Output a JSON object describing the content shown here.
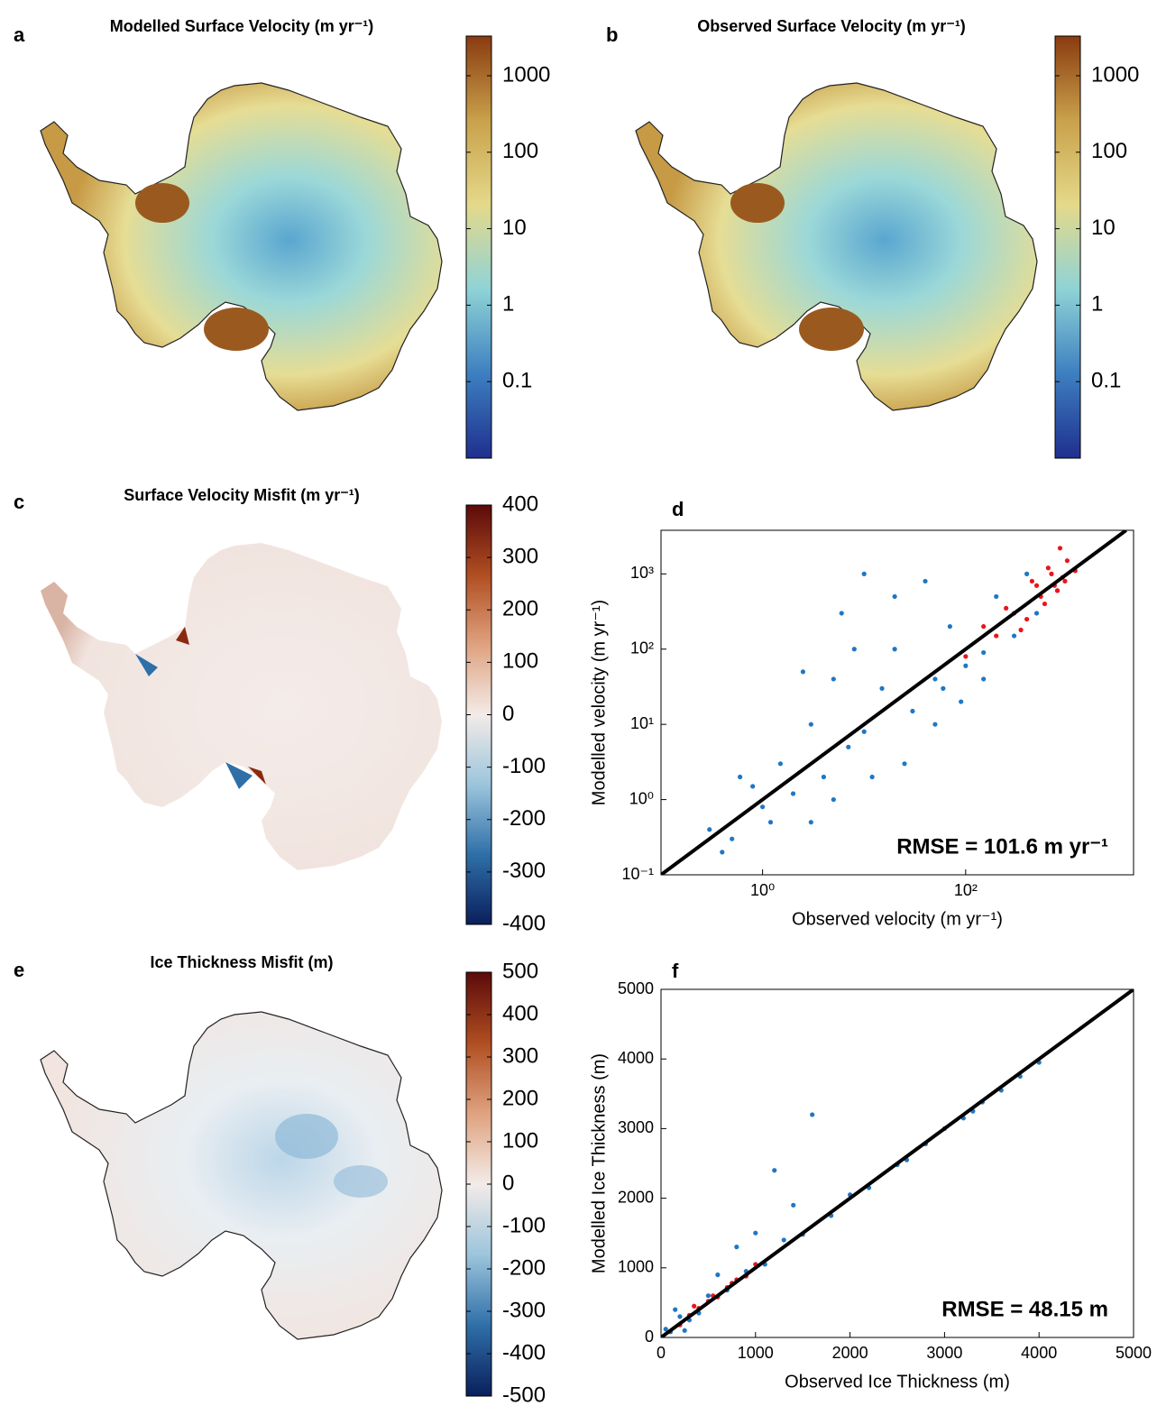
{
  "chart_data": [
    {
      "type": "map",
      "panel": "a",
      "title": "Modelled Surface Velocity (m yr⁻¹)",
      "log_scale": true,
      "clim": [
        0.01,
        3300
      ],
      "cticks": [
        0.1,
        1,
        10,
        100,
        1000
      ],
      "colormap": [
        "#1f2f8f",
        "#3d7fc0",
        "#8fd3d6",
        "#e4d98a",
        "#c9a14b",
        "#8a3b10"
      ]
    },
    {
      "type": "map",
      "panel": "b",
      "title": "Observed Surface Velocity (m yr⁻¹)",
      "log_scale": true,
      "clim": [
        0.01,
        3300
      ],
      "cticks": [
        0.1,
        1,
        10,
        100,
        1000
      ],
      "colormap": [
        "#1f2f8f",
        "#3d7fc0",
        "#8fd3d6",
        "#e4d98a",
        "#c9a14b",
        "#8a3b10"
      ]
    },
    {
      "type": "map",
      "panel": "c",
      "title": "Surface Velocity Misfit (m yr⁻¹)",
      "log_scale": false,
      "clim": [
        -400,
        400
      ],
      "cticks": [
        -400,
        -300,
        -200,
        -100,
        0,
        100,
        200,
        300,
        400
      ],
      "colormap": [
        "#0a1f5c",
        "#2f6fa8",
        "#9cc5dc",
        "#f3ebe8",
        "#dfa27f",
        "#b04e22",
        "#5c0a0a"
      ]
    },
    {
      "type": "scatter",
      "panel": "d",
      "log_scale": true,
      "xlabel": "Observed velocity (m yr⁻¹)",
      "ylabel": "Modelled velocity (m yr⁻¹)",
      "annotation": "RMSE = 101.6 m yr⁻¹",
      "xlim": [
        0.1,
        4500
      ],
      "ylim": [
        0.1,
        3800
      ],
      "xticks": [
        {
          "value": 1,
          "label": "10⁰"
        },
        {
          "value": 100,
          "label": "10²"
        }
      ],
      "yticks": [
        {
          "value": 0.1,
          "label": "10⁻¹"
        },
        {
          "value": 1,
          "label": "10⁰"
        },
        {
          "value": 10,
          "label": "10¹"
        },
        {
          "value": 100,
          "label": "10²"
        },
        {
          "value": 1000,
          "label": "10³"
        }
      ],
      "series": [
        {
          "type": "scatter",
          "color": "#1f77c4",
          "x": [
            0.3,
            0.5,
            0.8,
            1,
            1.5,
            2,
            3,
            4,
            5,
            7,
            10,
            15,
            20,
            30,
            50,
            70,
            100,
            150,
            200,
            300,
            500,
            800,
            1.2,
            2.5,
            6,
            12,
            25,
            40,
            60,
            90,
            0.4,
            0.6,
            3,
            8,
            20,
            50,
            150,
            400,
            5,
            10
          ],
          "y": [
            0.4,
            0.3,
            1.5,
            0.8,
            3,
            1.2,
            10,
            2,
            40,
            5,
            8,
            30,
            100,
            15,
            40,
            200,
            60,
            90,
            500,
            150,
            300,
            600,
            0.5,
            50,
            300,
            2,
            3,
            800,
            30,
            20,
            0.2,
            2,
            0.5,
            100,
            500,
            10,
            40,
            1000,
            1,
            1000
          ]
        },
        {
          "type": "scatter",
          "color": "#e8161b",
          "x": [
            100,
            150,
            200,
            300,
            400,
            500,
            600,
            700,
            800,
            900,
            1000,
            1200,
            250,
            350,
            450,
            550,
            650,
            750,
            850,
            950
          ],
          "y": [
            80,
            200,
            150,
            300,
            250,
            700,
            400,
            1000,
            600,
            900,
            1500,
            1100,
            350,
            180,
            800,
            500,
            1200,
            700,
            2200,
            800
          ]
        },
        {
          "type": "line",
          "color": "#000000",
          "x": [
            0.1,
            3800
          ],
          "y": [
            0.1,
            3800
          ]
        }
      ]
    },
    {
      "type": "map",
      "panel": "e",
      "title": "Ice Thickness Misfit (m)",
      "log_scale": false,
      "clim": [
        -500,
        500
      ],
      "cticks": [
        -500,
        -400,
        -300,
        -200,
        -100,
        0,
        100,
        200,
        300,
        400,
        500
      ],
      "colormap": [
        "#0a1f5c",
        "#2f6fa8",
        "#9cc5dc",
        "#f3ebe8",
        "#dfa27f",
        "#b04e22",
        "#5c0a0a"
      ]
    },
    {
      "type": "scatter",
      "panel": "f",
      "log_scale": false,
      "xlabel": "Observed Ice Thickness (m)",
      "ylabel": "Modelled Ice Thickness (m)",
      "annotation": "RMSE = 48.15 m",
      "xlim": [
        0,
        5000
      ],
      "ylim": [
        0,
        5000
      ],
      "xticks": [
        0,
        1000,
        2000,
        3000,
        4000,
        5000
      ],
      "yticks": [
        0,
        1000,
        2000,
        3000,
        4000,
        5000
      ],
      "series": [
        {
          "type": "scatter",
          "color": "#1f77c4",
          "x": [
            50,
            100,
            200,
            300,
            500,
            700,
            900,
            1100,
            1300,
            1500,
            1800,
            2000,
            2200,
            2500,
            2800,
            3000,
            3200,
            3400,
            3600,
            3800,
            4000,
            800,
            1200,
            1600,
            600,
            400,
            1000,
            1400,
            2600,
            3300,
            150,
            250
          ],
          "y": [
            120,
            80,
            300,
            250,
            600,
            680,
            950,
            1050,
            1400,
            1480,
            1750,
            2050,
            2150,
            2480,
            2780,
            3000,
            3150,
            3380,
            3550,
            3750,
            3950,
            1300,
            2400,
            3200,
            900,
            350,
            1500,
            1900,
            2550,
            3250,
            400,
            100
          ]
        },
        {
          "type": "scatter",
          "color": "#e8161b",
          "x": [
            200,
            300,
            400,
            500,
            600,
            700,
            800,
            900,
            1000,
            350,
            550,
            750
          ],
          "y": [
            180,
            320,
            420,
            520,
            580,
            720,
            830,
            880,
            1050,
            450,
            600,
            780
          ]
        },
        {
          "type": "line",
          "color": "#000000",
          "x": [
            0,
            5000
          ],
          "y": [
            0,
            5000
          ]
        }
      ]
    }
  ]
}
